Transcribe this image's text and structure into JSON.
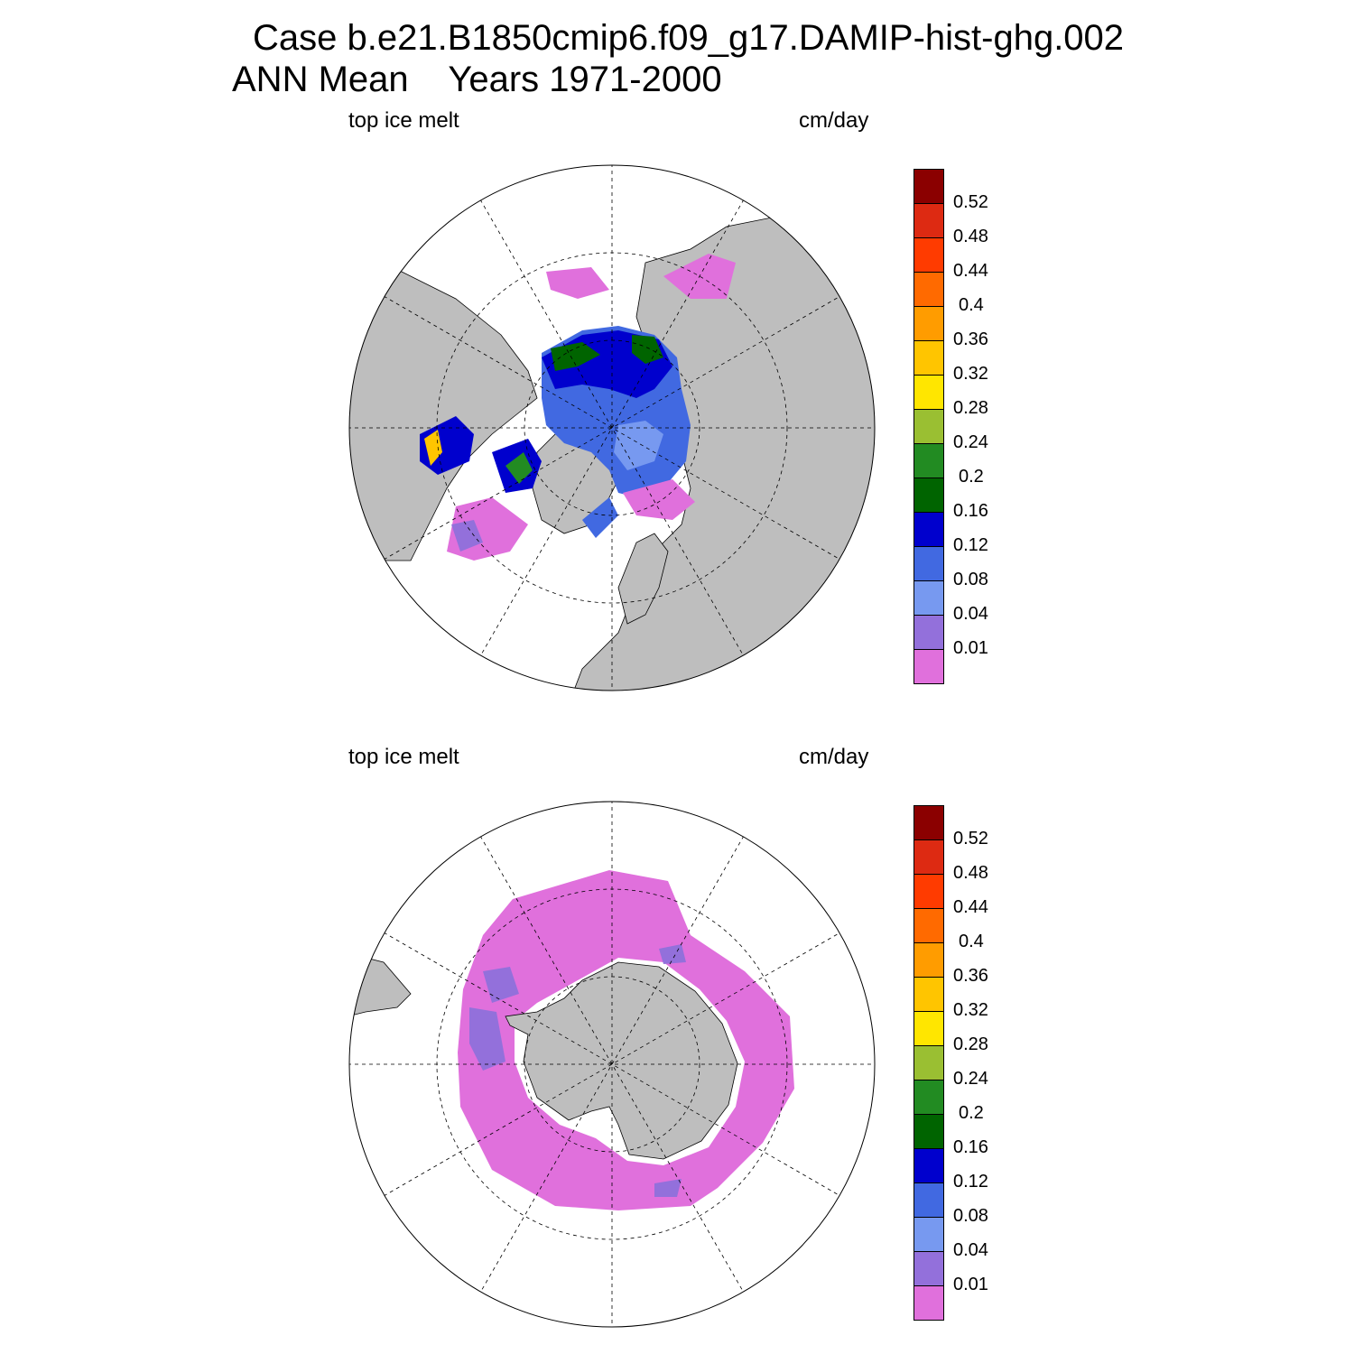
{
  "title": {
    "line1": "Case b.e21.B1850cmip6.f09_g17.DAMIP-hist-ghg.002",
    "line2": "ANN Mean    Years 1971-2000"
  },
  "panels": [
    {
      "hemisphere": "north",
      "variable_label": "top ice melt",
      "units_label": "cm/day"
    },
    {
      "hemisphere": "south",
      "variable_label": "top ice melt",
      "units_label": "cm/day"
    }
  ],
  "colorbar": {
    "tick_labels": [
      "0.52",
      "0.48",
      "0.44",
      "0.4",
      "0.36",
      "0.32",
      "0.28",
      "0.24",
      "0.2",
      "0.16",
      "0.12",
      "0.08",
      "0.04",
      "0.01"
    ],
    "colors": [
      "#8b0000",
      "#dd2a12",
      "#ff3b00",
      "#ff6a00",
      "#ff9c00",
      "#ffc500",
      "#ffe600",
      "#9abf32",
      "#228b22",
      "#006400",
      "#0000cd",
      "#4169e1",
      "#7799f0",
      "#9370db",
      "#e070dc"
    ]
  },
  "map_colors": {
    "land": "#bebebe",
    "ocean": "#ffffff",
    "grid": "#000000"
  }
}
